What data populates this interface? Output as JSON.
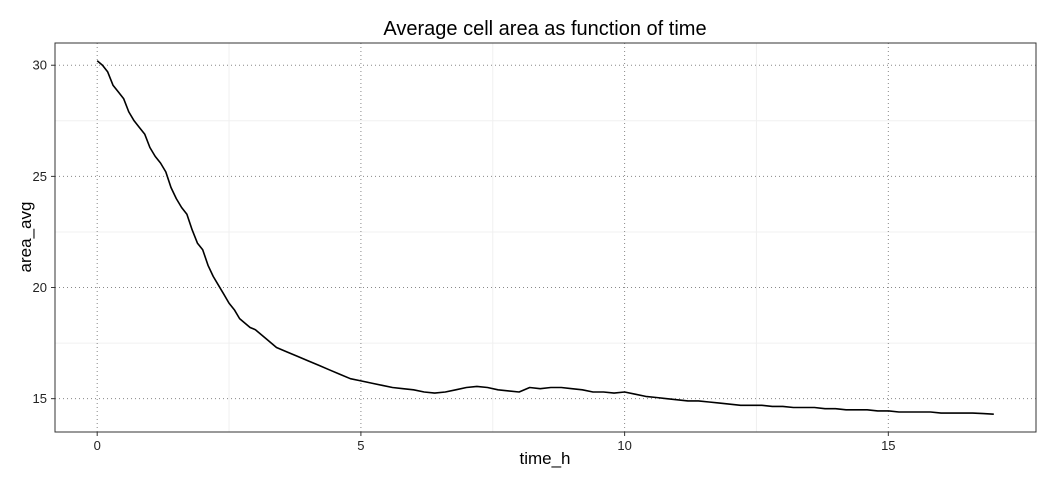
{
  "chart_data": {
    "type": "line",
    "title": "Average cell area as function of time",
    "xlabel": "time_h",
    "ylabel": "area_avg",
    "xlim": [
      -0.8,
      17.8
    ],
    "ylim": [
      13.5,
      31
    ],
    "xticks": [
      0,
      5,
      10,
      15
    ],
    "xtick_labels": [
      "0",
      "5",
      "10",
      "15"
    ],
    "yticks": [
      15,
      20,
      25,
      30
    ],
    "ytick_labels": [
      "15",
      "20",
      "25",
      "30"
    ],
    "grid": true,
    "series": [
      {
        "color": "#000000",
        "x": [
          0,
          0.1,
          0.2,
          0.3,
          0.4,
          0.5,
          0.6,
          0.7,
          0.8,
          0.9,
          1.0,
          1.1,
          1.2,
          1.3,
          1.4,
          1.5,
          1.6,
          1.7,
          1.8,
          1.9,
          2.0,
          2.1,
          2.2,
          2.3,
          2.4,
          2.5,
          2.6,
          2.7,
          2.8,
          2.9,
          3.0,
          3.2,
          3.4,
          3.6,
          3.8,
          4.0,
          4.2,
          4.4,
          4.6,
          4.8,
          5.0,
          5.2,
          5.4,
          5.6,
          5.8,
          6.0,
          6.2,
          6.4,
          6.6,
          6.8,
          7.0,
          7.2,
          7.4,
          7.6,
          7.8,
          8.0,
          8.2,
          8.4,
          8.6,
          8.8,
          9.0,
          9.2,
          9.4,
          9.6,
          9.8,
          10.0,
          10.2,
          10.4,
          10.6,
          10.8,
          11.0,
          11.2,
          11.4,
          11.6,
          11.8,
          12.0,
          12.2,
          12.4,
          12.6,
          12.8,
          13.0,
          13.2,
          13.4,
          13.6,
          13.8,
          14.0,
          14.2,
          14.4,
          14.6,
          14.8,
          15.0,
          15.2,
          15.4,
          15.6,
          15.8,
          16.0,
          16.2,
          16.4,
          16.6,
          16.8,
          17.0
        ],
        "y": [
          30.2,
          30.0,
          29.7,
          29.1,
          28.8,
          28.5,
          27.9,
          27.5,
          27.2,
          26.9,
          26.3,
          25.9,
          25.6,
          25.2,
          24.5,
          24.0,
          23.6,
          23.3,
          22.6,
          22.0,
          21.7,
          21.0,
          20.5,
          20.1,
          19.7,
          19.3,
          19.0,
          18.6,
          18.4,
          18.2,
          18.1,
          17.7,
          17.3,
          17.1,
          16.9,
          16.7,
          16.5,
          16.3,
          16.1,
          15.9,
          15.8,
          15.7,
          15.6,
          15.5,
          15.45,
          15.4,
          15.3,
          15.25,
          15.3,
          15.4,
          15.5,
          15.55,
          15.5,
          15.4,
          15.35,
          15.3,
          15.5,
          15.45,
          15.5,
          15.5,
          15.45,
          15.4,
          15.3,
          15.3,
          15.25,
          15.3,
          15.2,
          15.1,
          15.05,
          15.0,
          14.95,
          14.9,
          14.9,
          14.85,
          14.8,
          14.75,
          14.7,
          14.7,
          14.7,
          14.65,
          14.65,
          14.6,
          14.6,
          14.6,
          14.55,
          14.55,
          14.5,
          14.5,
          14.5,
          14.45,
          14.45,
          14.4,
          14.4,
          14.4,
          14.4,
          14.35,
          14.35,
          14.35,
          14.35,
          14.33,
          14.3
        ]
      }
    ]
  }
}
